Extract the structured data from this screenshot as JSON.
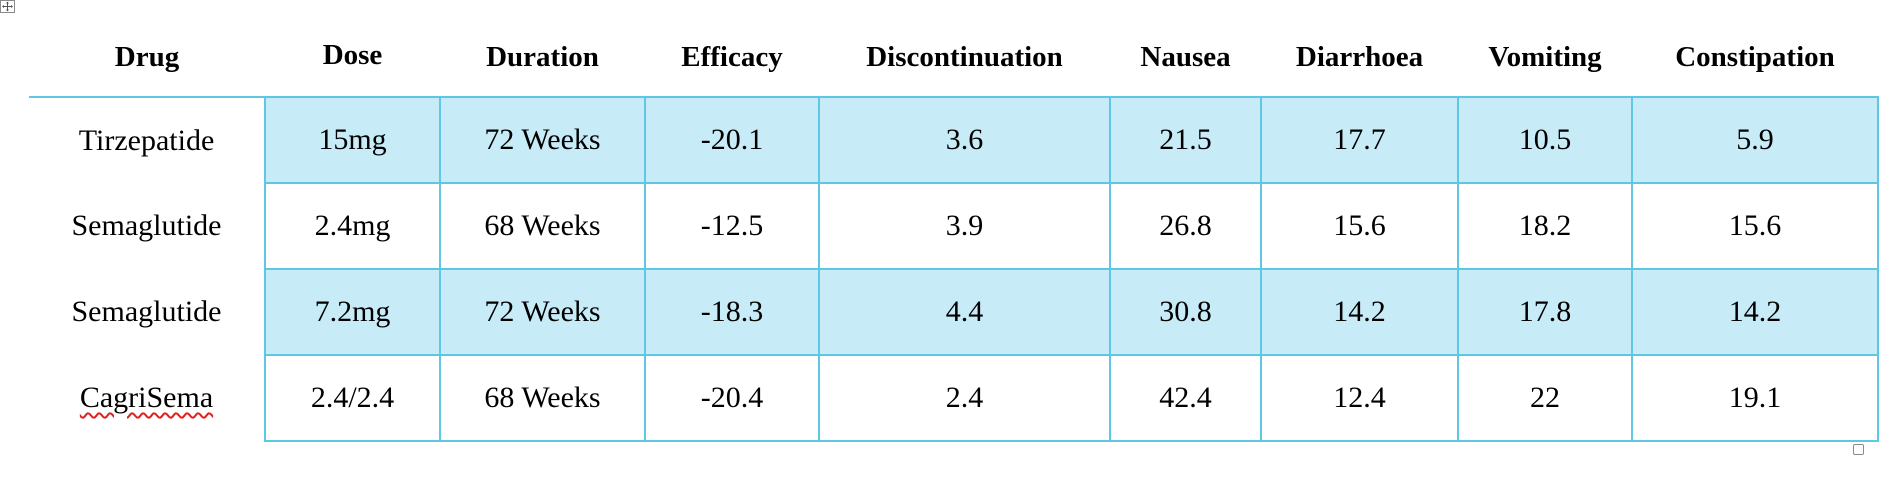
{
  "table": {
    "columns": [
      "Drug",
      "Dose",
      "Duration",
      "Efficacy",
      "Discontinuation",
      "Nausea",
      "Diarrhoea",
      "Vomiting",
      "Constipation"
    ],
    "rows": [
      {
        "drug": "Tirzepatide",
        "dose": "15mg",
        "duration": "72 Weeks",
        "efficacy": "-20.1",
        "discontinuation": "3.6",
        "nausea": "21.5",
        "diarrhoea": "17.7",
        "vomiting": "10.5",
        "constipation": "5.9"
      },
      {
        "drug": "Semaglutide",
        "dose": "2.4mg",
        "duration": "68 Weeks",
        "efficacy": "-12.5",
        "discontinuation": "3.9",
        "nausea": "26.8",
        "diarrhoea": "15.6",
        "vomiting": "18.2",
        "constipation": "15.6"
      },
      {
        "drug": "Semaglutide",
        "dose": "7.2mg",
        "duration": "72 Weeks",
        "efficacy": "-18.3",
        "discontinuation": "4.4",
        "nausea": "30.8",
        "diarrhoea": "14.2",
        "vomiting": "17.8",
        "constipation": "14.2"
      },
      {
        "drug": "CagriSema",
        "dose": "2.4/2.4",
        "duration": "68 Weeks",
        "efficacy": "-20.4",
        "discontinuation": "2.4",
        "nausea": "42.4",
        "diarrhoea": "12.4",
        "vomiting": "22",
        "constipation": "19.1"
      }
    ]
  },
  "colors": {
    "border": "#5fc6e3",
    "shaded_row": "#c8ebf8",
    "spellcheck_underline": "#e02020"
  },
  "icons": {
    "table_move_handle": "move-arrows-icon",
    "table_resize_handle": "resize-handle-icon"
  }
}
